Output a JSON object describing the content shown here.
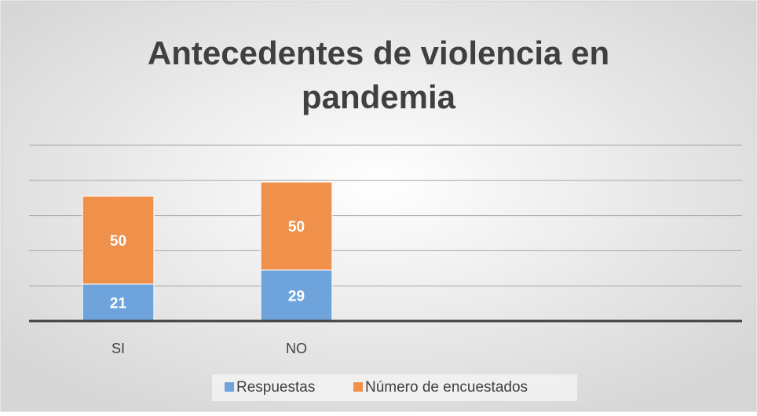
{
  "chart_data": {
    "type": "stacked_bar",
    "title": "Antecedentes de violencia en pandemia",
    "categories": [
      "SI",
      "NO",
      null,
      null
    ],
    "series": [
      {
        "name": "Respuestas",
        "color": "#6fa3dc",
        "values": [
          21,
          29,
          null,
          null
        ]
      },
      {
        "name": "Número de encuestados",
        "color": "#f0914b",
        "values": [
          50,
          50,
          null,
          null
        ]
      }
    ],
    "ylim": [
      0,
      100
    ],
    "yticks": [
      0,
      20,
      40,
      60,
      80,
      100
    ],
    "grid": true,
    "legend": "bottom"
  }
}
